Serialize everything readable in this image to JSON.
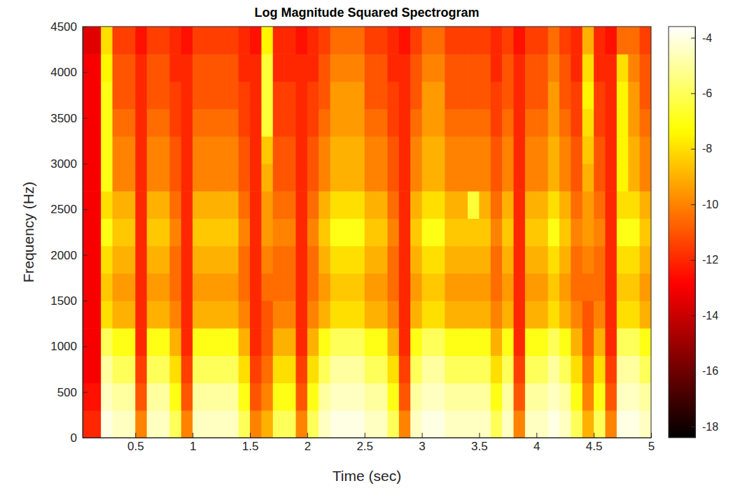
{
  "chart_data": {
    "type": "heatmap",
    "title": "Log Magnitude Squared Spectrogram",
    "xlabel": "Time (sec)",
    "ylabel": "Frequency (Hz)",
    "xlim": [
      0.04,
      5.0
    ],
    "ylim": [
      0,
      4500
    ],
    "xticks": [
      0.5,
      1,
      1.5,
      2,
      2.5,
      3,
      3.5,
      4,
      4.5,
      5
    ],
    "yticks": [
      0,
      500,
      1000,
      1500,
      2000,
      2500,
      3000,
      3500,
      4000,
      4500
    ],
    "x": [
      0.05,
      0.15,
      0.25,
      0.35,
      0.45,
      0.55,
      0.65,
      0.75,
      0.85,
      0.95,
      1.05,
      1.15,
      1.25,
      1.35,
      1.45,
      1.55,
      1.65,
      1.75,
      1.85,
      1.95,
      2.05,
      2.15,
      2.25,
      2.35,
      2.45,
      2.55,
      2.65,
      2.75,
      2.85,
      2.95,
      3.05,
      3.15,
      3.25,
      3.35,
      3.45,
      3.55,
      3.65,
      3.75,
      3.85,
      3.95,
      4.05,
      4.15,
      4.25,
      4.35,
      4.45,
      4.55,
      4.65,
      4.75,
      4.85,
      4.95
    ],
    "y": [
      150,
      450,
      750,
      1050,
      1350,
      1650,
      1950,
      2250,
      2550,
      2850,
      3150,
      3450,
      3750,
      4050,
      4350
    ],
    "cells": [
      [
        -12,
        -12,
        -4,
        -4.5,
        -4.5,
        -10,
        -4.5,
        -4.5,
        -6,
        -10,
        -4.5,
        -4.5,
        -4.5,
        -4.5,
        -6,
        -10,
        -9,
        -6,
        -6,
        -10,
        -6,
        -4.5,
        -4,
        -4,
        -4,
        -4.5,
        -4.5,
        -6,
        -10,
        -4.5,
        -4,
        -4,
        -4.5,
        -4.5,
        -4.5,
        -4.5,
        -6,
        -4.5,
        -10,
        -4.5,
        -4.5,
        -4,
        -4.5,
        -6,
        -9,
        -6,
        -10,
        -4,
        -4,
        -4.5
      ],
      [
        -12.5,
        -12.5,
        -4.5,
        -5,
        -5,
        -11,
        -5,
        -5,
        -7,
        -11,
        -5,
        -5,
        -5,
        -5,
        -7,
        -11,
        -10,
        -7,
        -7,
        -11,
        -7,
        -5,
        -4.5,
        -4.5,
        -4.5,
        -5,
        -5,
        -7,
        -11,
        -5,
        -4.5,
        -4.5,
        -5,
        -5,
        -5,
        -5,
        -7,
        -5,
        -11,
        -5,
        -5,
        -4.5,
        -5,
        -7,
        -10,
        -7,
        -11,
        -4.5,
        -4.5,
        -5
      ],
      [
        -13,
        -13,
        -5,
        -6,
        -6,
        -11.5,
        -6,
        -6,
        -8,
        -11.5,
        -6,
        -6,
        -6,
        -6,
        -8,
        -11.5,
        -10.5,
        -8,
        -8,
        -11.5,
        -8,
        -6,
        -5,
        -5,
        -5,
        -6,
        -6,
        -8,
        -11.5,
        -6,
        -5,
        -5,
        -6,
        -6,
        -6,
        -6,
        -8,
        -6,
        -11.5,
        -6,
        -6,
        -5,
        -6,
        -8,
        -10.5,
        -8,
        -11.5,
        -5,
        -5,
        -6
      ],
      [
        -13,
        -13,
        -6,
        -7,
        -7,
        -12,
        -7,
        -7,
        -9,
        -12,
        -7,
        -7,
        -7,
        -7,
        -9,
        -12,
        -11,
        -9,
        -9,
        -12,
        -9,
        -7,
        -6,
        -6,
        -6,
        -7,
        -7,
        -9,
        -12,
        -7,
        -6,
        -6,
        -7,
        -7,
        -7,
        -7,
        -9,
        -7,
        -12,
        -7,
        -7,
        -6,
        -7,
        -9,
        -11,
        -9,
        -12,
        -6,
        -6,
        -7
      ],
      [
        -13,
        -13,
        -8,
        -9,
        -9,
        -12,
        -9,
        -9,
        -10,
        -12,
        -9,
        -9,
        -9,
        -9,
        -10,
        -12,
        -11,
        -10,
        -10,
        -12,
        -10,
        -9,
        -8,
        -8,
        -8,
        -9,
        -9,
        -10,
        -12,
        -9,
        -8,
        -8,
        -9,
        -9,
        -9,
        -9,
        -10,
        -9,
        -12,
        -9,
        -9,
        -8,
        -9,
        -10,
        -11,
        -10,
        -12,
        -8,
        -8,
        -9
      ],
      [
        -13,
        -13,
        -8.5,
        -9.5,
        -9.5,
        -12,
        -9.5,
        -9.5,
        -10.5,
        -12,
        -9.5,
        -9.5,
        -9.5,
        -9.5,
        -10.5,
        -12,
        -10.5,
        -10.5,
        -10.5,
        -12,
        -10.5,
        -9.5,
        -8.5,
        -8.5,
        -8.5,
        -9.5,
        -9.5,
        -10.5,
        -12,
        -9.5,
        -8.5,
        -8.5,
        -9.5,
        -9.5,
        -9.5,
        -9.5,
        -10.5,
        -9.5,
        -12,
        -9.5,
        -9.5,
        -8.5,
        -9.5,
        -10.5,
        -10.5,
        -10.5,
        -12,
        -8.5,
        -8.5,
        -9.5
      ],
      [
        -13,
        -13,
        -8,
        -9,
        -9,
        -12,
        -9,
        -9,
        -10.5,
        -12,
        -9,
        -9,
        -9,
        -9,
        -10.5,
        -12,
        -10,
        -10.5,
        -10.5,
        -12,
        -10.5,
        -9,
        -8,
        -8,
        -8,
        -9,
        -9,
        -10.5,
        -12,
        -9,
        -8,
        -8,
        -9,
        -9,
        -9,
        -9,
        -10.5,
        -9,
        -12,
        -9,
        -9,
        -8,
        -9,
        -10.5,
        -10,
        -10.5,
        -12,
        -8,
        -8,
        -9
      ],
      [
        -13,
        -13,
        -7,
        -8.5,
        -8.5,
        -12,
        -8.5,
        -8.5,
        -10,
        -12,
        -8.5,
        -8.5,
        -8.5,
        -8.5,
        -10,
        -12,
        -9.5,
        -10,
        -10,
        -12,
        -10,
        -8.5,
        -7,
        -7,
        -7,
        -8.5,
        -8.5,
        -10,
        -12,
        -8.5,
        -7,
        -7,
        -8.5,
        -8.5,
        -8.5,
        -8.5,
        -10,
        -8.5,
        -12,
        -8.5,
        -8.5,
        -7,
        -8.5,
        -10,
        -9.5,
        -10,
        -12,
        -7,
        -7,
        -8.5
      ],
      [
        -13,
        -13,
        -8,
        -9,
        -9,
        -12,
        -9,
        -9,
        -10.5,
        -12,
        -9,
        -9,
        -9,
        -9,
        -10.5,
        -12,
        -9.5,
        -10.5,
        -10.5,
        -12,
        -10.5,
        -9,
        -8,
        -8,
        -8,
        -9,
        -9,
        -10.5,
        -12,
        -9,
        -8,
        -8,
        -9,
        -9,
        -6.5,
        -9,
        -10.5,
        -9,
        -12,
        -9,
        -9,
        -8,
        -9,
        -10.5,
        -9.5,
        -10.5,
        -12,
        -8,
        -8,
        -9
      ],
      [
        -13,
        -13,
        -7,
        -10,
        -10,
        -12,
        -10,
        -10,
        -11,
        -12,
        -10,
        -10,
        -10,
        -10,
        -11,
        -12,
        -9,
        -11,
        -11,
        -12,
        -11,
        -10,
        -9,
        -9,
        -9,
        -10,
        -10,
        -11,
        -12,
        -10,
        -9,
        -9,
        -10,
        -10,
        -10,
        -10,
        -11,
        -10,
        -12,
        -10,
        -10,
        -9,
        -10,
        -11,
        -9,
        -11,
        -12,
        -7.5,
        -9,
        -10
      ],
      [
        -13,
        -13,
        -7,
        -10,
        -10,
        -12,
        -10,
        -10,
        -11,
        -12,
        -10,
        -10,
        -10,
        -10,
        -11,
        -12,
        -8.5,
        -11,
        -11,
        -12,
        -11,
        -10,
        -9,
        -9,
        -9,
        -10,
        -10,
        -11,
        -12,
        -10,
        -9,
        -9,
        -10,
        -10,
        -10,
        -10,
        -11,
        -10,
        -12,
        -10,
        -10,
        -9,
        -10,
        -11,
        -8.5,
        -11,
        -12,
        -7.5,
        -9,
        -10
      ],
      [
        -13,
        -13,
        -7,
        -10.5,
        -10.5,
        -12,
        -10.5,
        -10.5,
        -11.5,
        -12,
        -10.5,
        -10.5,
        -10.5,
        -10.5,
        -11.5,
        -12,
        -6.5,
        -11.5,
        -11.5,
        -12,
        -11.5,
        -10.5,
        -9.5,
        -9.5,
        -9.5,
        -10.5,
        -10.5,
        -11.5,
        -12,
        -10.5,
        -9.5,
        -9.5,
        -10.5,
        -10.5,
        -10.5,
        -10.5,
        -11.5,
        -10.5,
        -12,
        -10.5,
        -10.5,
        -9.5,
        -10.5,
        -11.5,
        -8,
        -11.5,
        -12,
        -7.5,
        -9.5,
        -10.5
      ],
      [
        -13,
        -13,
        -7,
        -11,
        -11,
        -12,
        -11,
        -11,
        -11.5,
        -12,
        -11,
        -11,
        -11,
        -11,
        -11.5,
        -12,
        -6.5,
        -11.5,
        -11.5,
        -12,
        -11.5,
        -11,
        -9.5,
        -9.5,
        -9.5,
        -11,
        -11,
        -11.5,
        -12,
        -11,
        -9.5,
        -9.5,
        -11,
        -11,
        -11,
        -11,
        -11.5,
        -11,
        -12,
        -11,
        -11,
        -9.5,
        -11,
        -11.5,
        -7.5,
        -11.5,
        -12,
        -7.5,
        -9.5,
        -11
      ],
      [
        -13,
        -13,
        -7.5,
        -11,
        -11,
        -12,
        -11,
        -11,
        -12,
        -12,
        -11,
        -11,
        -11,
        -11,
        -12,
        -12,
        -6.5,
        -12,
        -12,
        -12,
        -12,
        -11,
        -10,
        -10,
        -10,
        -11,
        -11,
        -12,
        -12,
        -11,
        -10,
        -10,
        -11,
        -11,
        -11,
        -11,
        -12,
        -11,
        -12,
        -11,
        -11,
        -10,
        -11,
        -12,
        -8,
        -12,
        -12,
        -8,
        -10,
        -11
      ],
      [
        -13.5,
        -13.5,
        -8,
        -11.5,
        -11.5,
        -12.5,
        -11.5,
        -11.5,
        -12,
        -12.5,
        -11.5,
        -11.5,
        -11.5,
        -11.5,
        -12,
        -12.5,
        -7.5,
        -12,
        -12,
        -12.5,
        -12,
        -11.5,
        -10.5,
        -10.5,
        -10.5,
        -11.5,
        -11.5,
        -12,
        -12.5,
        -11.5,
        -10.5,
        -10.5,
        -11.5,
        -11.5,
        -11.5,
        -11.5,
        -12,
        -11.5,
        -12.5,
        -11.5,
        -11.5,
        -10.5,
        -11.5,
        -12,
        -9,
        -12,
        -12.5,
        -10.5,
        -10.5,
        -11.5
      ]
    ],
    "colorbar_lim": [
      -18.4,
      -3.6
    ],
    "colorbar_ticks": [
      -18,
      -16,
      -14,
      -12,
      -10,
      -8,
      -6,
      -4
    ]
  }
}
